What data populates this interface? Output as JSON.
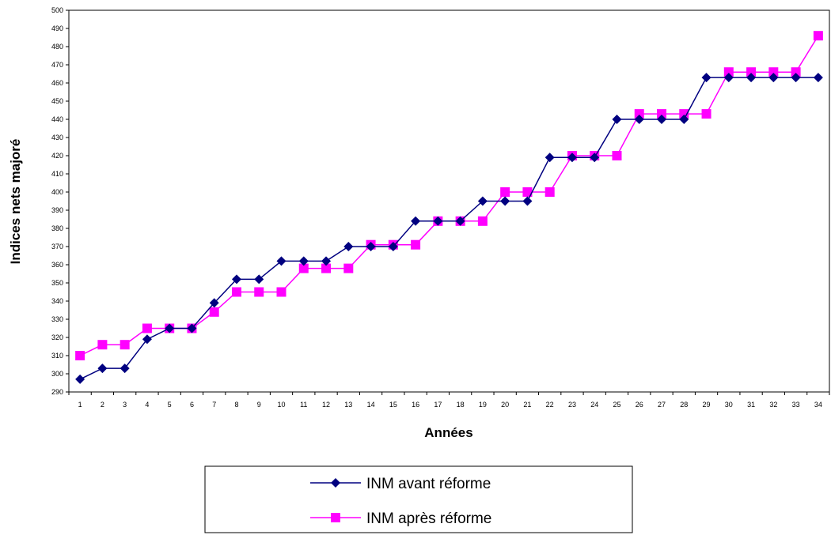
{
  "chart_data": {
    "type": "line",
    "xlabel": "Années",
    "ylabel": "Indices nets majoré",
    "ylim": [
      290,
      500
    ],
    "yticks": [
      290,
      300,
      310,
      320,
      330,
      340,
      350,
      360,
      370,
      380,
      390,
      400,
      410,
      420,
      430,
      440,
      450,
      460,
      470,
      480,
      490,
      500
    ],
    "categories": [
      "1",
      "2",
      "3",
      "4",
      "5",
      "6",
      "7",
      "8",
      "9",
      "10",
      "11",
      "12",
      "13",
      "14",
      "15",
      "16",
      "17",
      "18",
      "19",
      "20",
      "21",
      "22",
      "23",
      "24",
      "25",
      "26",
      "27",
      "28",
      "29",
      "30",
      "31",
      "32",
      "33",
      "34"
    ],
    "grid": false,
    "legend_position": "bottom",
    "series": [
      {
        "name": "INM avant réforme",
        "color": "#000080",
        "marker": "diamond",
        "values": [
          297,
          303,
          303,
          319,
          325,
          325,
          339,
          352,
          352,
          362,
          362,
          362,
          370,
          370,
          370,
          384,
          384,
          384,
          395,
          395,
          395,
          419,
          419,
          419,
          440,
          440,
          440,
          440,
          463,
          463,
          463,
          463,
          463,
          463
        ]
      },
      {
        "name": "INM après réforme",
        "color": "#FF00FF",
        "marker": "square",
        "values": [
          310,
          316,
          316,
          325,
          325,
          325,
          334,
          345,
          345,
          345,
          358,
          358,
          358,
          371,
          371,
          371,
          384,
          384,
          384,
          400,
          400,
          400,
          420,
          420,
          420,
          443,
          443,
          443,
          443,
          466,
          466,
          466,
          466,
          486
        ]
      }
    ]
  }
}
